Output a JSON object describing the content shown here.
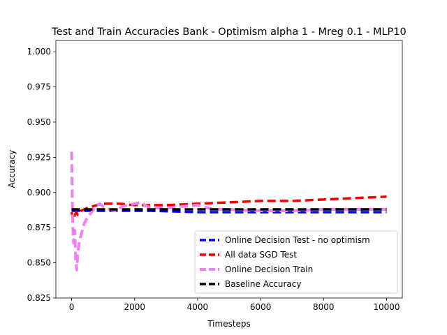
{
  "chart_data": {
    "type": "line",
    "title": "Test and Train Accuracies Bank - Optimism alpha 1 - Mreg 0.1 - MLP10",
    "xlabel": "Timesteps",
    "ylabel": "Accuracy",
    "xlim": [
      -500,
      10500
    ],
    "ylim": [
      0.825,
      1.008
    ],
    "xticks": [
      0,
      2000,
      4000,
      6000,
      8000,
      10000
    ],
    "xtick_labels": [
      "0",
      "2000",
      "4000",
      "6000",
      "8000",
      "10000"
    ],
    "yticks": [
      0.825,
      0.85,
      0.875,
      0.9,
      0.925,
      0.95,
      0.975,
      1.0
    ],
    "ytick_labels": [
      "0.825",
      "0.850",
      "0.875",
      "0.900",
      "0.925",
      "0.950",
      "0.975",
      "1.000"
    ],
    "grid": false,
    "legend_position": "lower-right",
    "series": [
      {
        "name": "Online Decision Test - no optimism",
        "color": "#0000ee",
        "x": [
          0,
          50,
          100,
          200,
          400,
          800,
          1500,
          2500,
          4000,
          5000,
          6000,
          7000,
          8000,
          9000,
          10000
        ],
        "y": [
          0.887,
          0.887,
          0.887,
          0.887,
          0.887,
          0.887,
          0.887,
          0.887,
          0.886,
          0.886,
          0.886,
          0.886,
          0.886,
          0.886,
          0.886
        ]
      },
      {
        "name": "All data SGD Test",
        "color": "#ee0000",
        "x": [
          0,
          50,
          100,
          150,
          200,
          300,
          500,
          800,
          1000,
          1500,
          2000,
          3000,
          4000,
          5000,
          6000,
          7000,
          8000,
          9000,
          10000
        ],
        "y": [
          0.886,
          0.88,
          0.884,
          0.886,
          0.884,
          0.887,
          0.889,
          0.891,
          0.892,
          0.892,
          0.891,
          0.891,
          0.892,
          0.893,
          0.894,
          0.894,
          0.895,
          0.896,
          0.897
        ]
      },
      {
        "name": "Online Decision Train",
        "color": "#ee82ee",
        "x": [
          0,
          20,
          40,
          60,
          80,
          100,
          130,
          160,
          200,
          250,
          300,
          350,
          400,
          450,
          500,
          600,
          700,
          800,
          900,
          1000,
          1200,
          1400,
          1600,
          1800,
          2000,
          2200,
          2400,
          2600,
          3000,
          3500,
          4000,
          4500,
          5000,
          6000,
          7000,
          8000,
          9000,
          10000
        ],
        "y": [
          0.929,
          0.9,
          0.875,
          0.864,
          0.87,
          0.873,
          0.852,
          0.845,
          0.858,
          0.866,
          0.87,
          0.874,
          0.878,
          0.88,
          0.882,
          0.885,
          0.888,
          0.891,
          0.892,
          0.89,
          0.888,
          0.887,
          0.89,
          0.891,
          0.892,
          0.893,
          0.89,
          0.889,
          0.889,
          0.89,
          0.891,
          0.888,
          0.888,
          0.887,
          0.887,
          0.888,
          0.888,
          0.888
        ]
      },
      {
        "name": "Baseline Accuracy",
        "color": "#000000",
        "x": [
          0,
          10000
        ],
        "y": [
          0.888,
          0.888
        ]
      }
    ]
  }
}
